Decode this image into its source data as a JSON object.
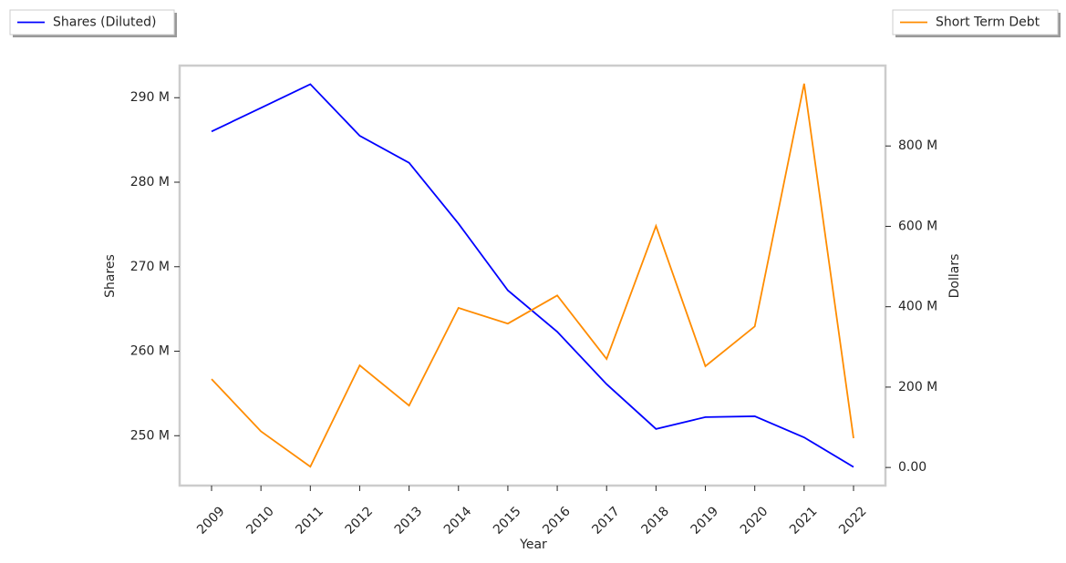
{
  "chart_data": {
    "type": "line",
    "x_label": "Year",
    "y_label": "Shares",
    "y2_label": "Dollars",
    "categories": [
      "2009",
      "2010",
      "2011",
      "2012",
      "2013",
      "2014",
      "2015",
      "2016",
      "2017",
      "2018",
      "2019",
      "2020",
      "2021",
      "2022"
    ],
    "series": [
      {
        "name": "Shares (Diluted)",
        "color": "#0000ff",
        "axis": "y",
        "legend_corner": "upper left",
        "values": [
          286000000,
          288800000,
          291600000,
          285500000,
          282300000,
          275100000,
          267200000,
          262300000,
          256100000,
          250800000,
          252200000,
          252300000,
          249800000,
          246300000
        ]
      },
      {
        "name": "Short Term Debt",
        "color": "#ff8c00",
        "axis": "y2",
        "legend_corner": "upper right",
        "values": [
          220000000,
          90000000,
          2000000,
          254000000,
          154000000,
          397000000,
          358000000,
          428000000,
          270000000,
          601000000,
          252000000,
          351000000,
          955000000,
          73000000
        ]
      }
    ],
    "ylim": [
      244100000,
      293800000
    ],
    "yticks": [
      {
        "value": 250000000,
        "label": "250 M"
      },
      {
        "value": 260000000,
        "label": "260 M"
      },
      {
        "value": 270000000,
        "label": "270 M"
      },
      {
        "value": 280000000,
        "label": "280 M"
      },
      {
        "value": 290000000,
        "label": "290 M"
      }
    ],
    "y2lim": [
      -45000000,
      1000000000
    ],
    "y2ticks": [
      {
        "value": 0,
        "label": "0.00"
      },
      {
        "value": 200000000,
        "label": "200 M"
      },
      {
        "value": 400000000,
        "label": "400 M"
      },
      {
        "value": 600000000,
        "label": "600 M"
      },
      {
        "value": 800000000,
        "label": "800 M"
      }
    ],
    "grid": false
  }
}
